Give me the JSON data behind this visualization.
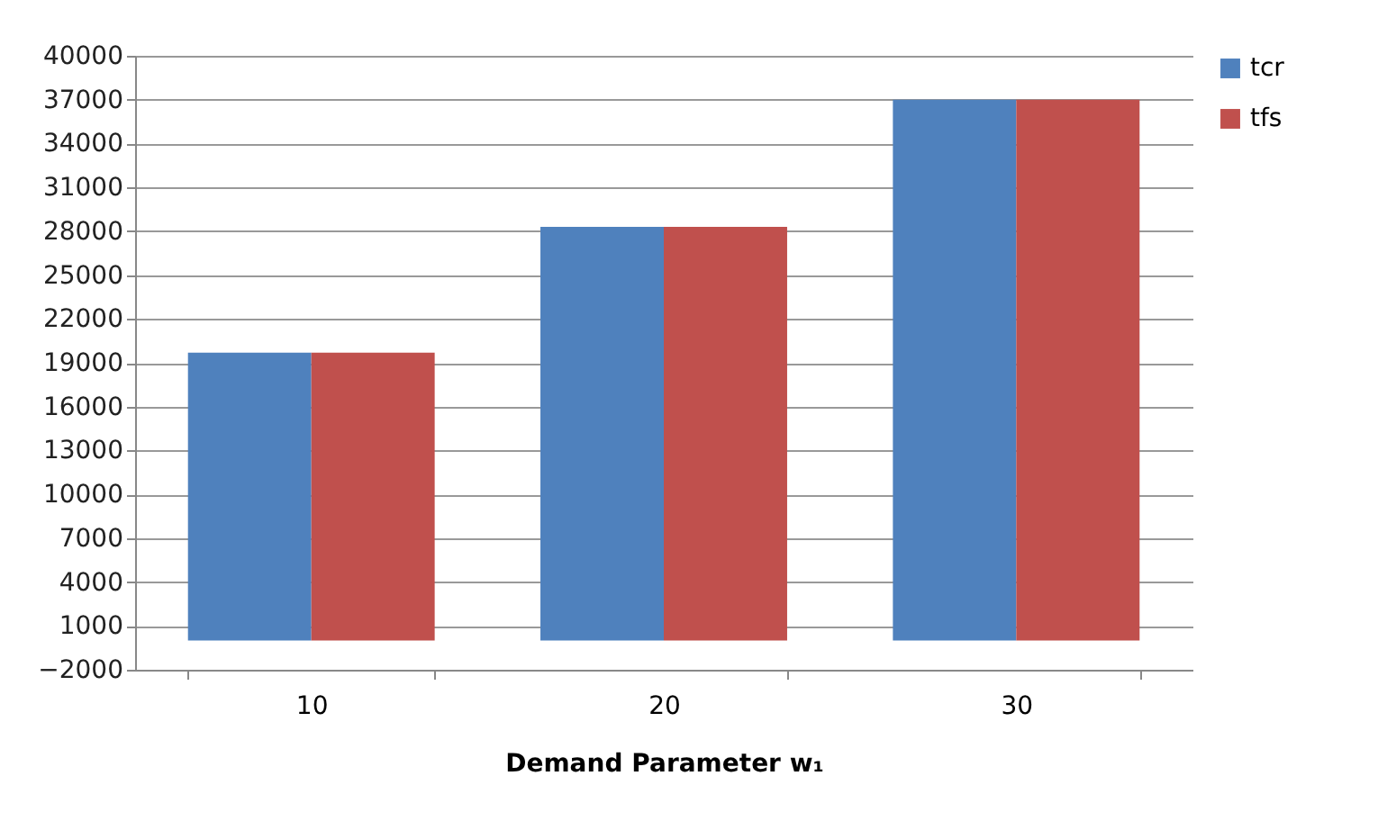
{
  "chart_data": {
    "type": "bar",
    "xlabel": "Demand Parameter w₁",
    "categories": [
      "10",
      "20",
      "30"
    ],
    "series": [
      {
        "name": "tcr",
        "color": "#4f81bd",
        "values": [
          19700,
          28300,
          37000
        ]
      },
      {
        "name": "tfs",
        "color": "#c0504d",
        "values": [
          19700,
          28300,
          37000
        ]
      }
    ],
    "ylim": [
      -2000,
      40000
    ],
    "yticks": [
      -2000,
      1000,
      4000,
      7000,
      10000,
      13000,
      16000,
      19000,
      22000,
      25000,
      28000,
      31000,
      34000,
      37000,
      40000
    ],
    "grid": "y",
    "legend": "right"
  }
}
